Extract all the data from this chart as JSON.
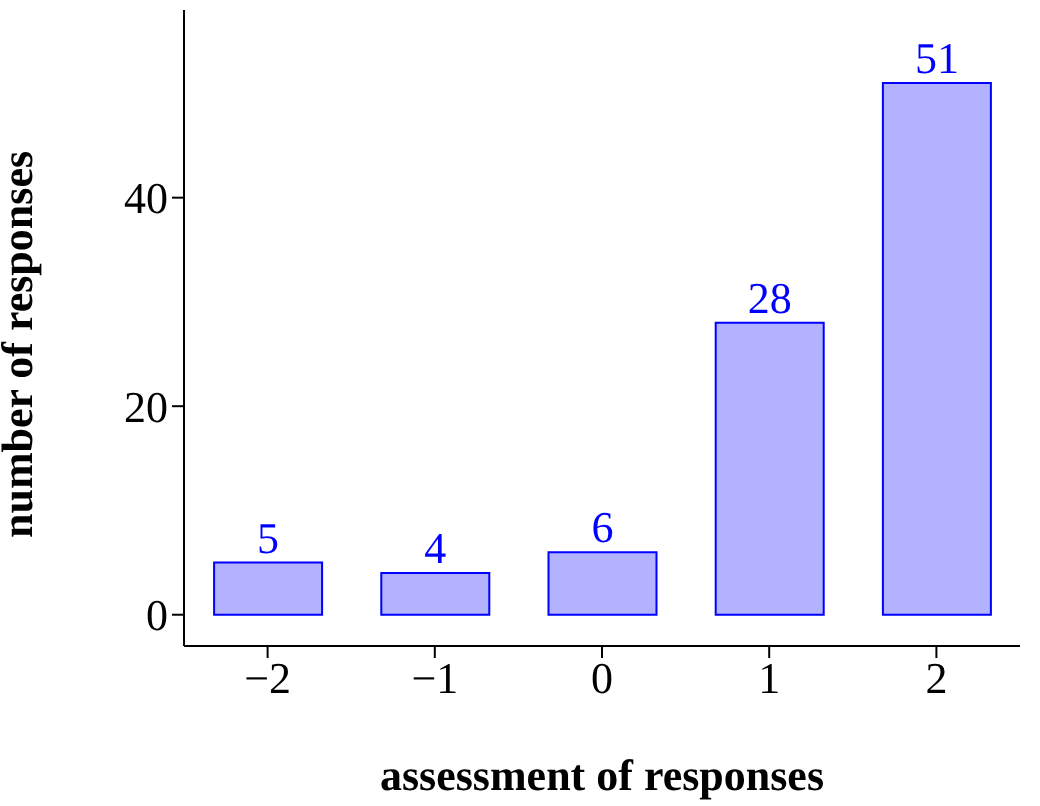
{
  "chart_data": {
    "type": "bar",
    "xlabel": "assessment of responses",
    "ylabel": "number of responses",
    "categories": [
      "−2",
      "−1",
      "0",
      "1",
      "2"
    ],
    "series": [
      {
        "color": "#0000ff",
        "values": [
          5,
          4,
          6,
          28,
          51
        ]
      }
    ],
    "ylim": [
      -3,
      58
    ],
    "yticks": [
      0,
      20,
      40
    ],
    "data_labels": true,
    "grid": false,
    "legend": false
  }
}
